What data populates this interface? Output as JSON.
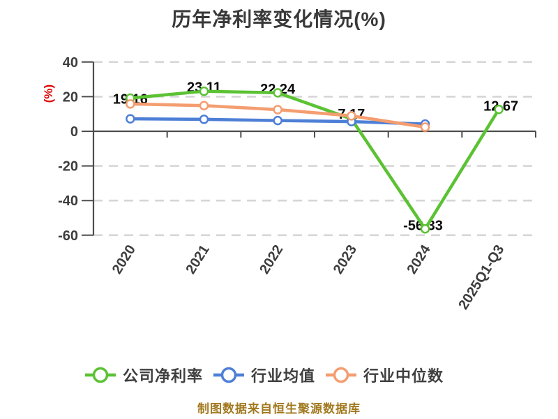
{
  "title": "历年净利率变化情况(%)",
  "footer": "制图数据来自恒生聚源数据库",
  "colors": {
    "background": "#FFFFFF",
    "axis": "#4D4D4D",
    "grid": "#D6D6D6",
    "tick_label": "#3D3D3D",
    "title": "#383838",
    "ylabel": "#E00000",
    "value_label": "#0A0A0A",
    "legend_text": "#3F3F3F",
    "footer": "#A1791F",
    "series_green": "#5BC234",
    "series_blue": "#4D7FD6",
    "series_orange": "#F49D70"
  },
  "chart_data": {
    "type": "line",
    "title": "历年净利率变化情况(%)",
    "xlabel": "",
    "ylabel": "(%)",
    "categories": [
      "2020",
      "2021",
      "2022",
      "2023",
      "2024",
      "2025Q1-Q3"
    ],
    "yticks": [
      "40",
      "20",
      "0",
      "-20",
      "-40",
      "-60"
    ],
    "ylim": [
      -66,
      44
    ],
    "grid": "horizontal dashed",
    "legend_position": "bottom",
    "series": [
      {
        "name": "公司净利率",
        "color": "#5BC234",
        "values": [
          19.16,
          23.11,
          22.24,
          7.17,
          -56.33,
          12.67
        ],
        "point_labels": [
          "19.16",
          "23.11",
          "22.24",
          "7.17",
          "-56.33",
          "12.67"
        ]
      },
      {
        "name": "行业均值",
        "color": "#4D7FD6",
        "values": [
          7.2,
          6.9,
          6.2,
          5.6,
          4.2
        ],
        "point_labels": []
      },
      {
        "name": "行业中位数",
        "color": "#F49D70",
        "values": [
          15.8,
          14.8,
          12.5,
          8.9,
          2.4
        ],
        "point_labels": []
      }
    ]
  }
}
